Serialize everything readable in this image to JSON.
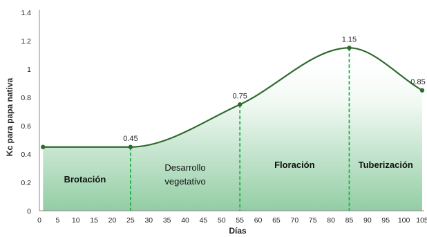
{
  "chart_data": {
    "type": "line",
    "xlabel": "Días",
    "ylabel": "Kc  para papa nativa",
    "xlim": [
      0,
      105
    ],
    "ylim": [
      0,
      1.4
    ],
    "x_ticks": [
      "0",
      "5",
      "10",
      "15",
      "20",
      "25",
      "30",
      "35",
      "40",
      "45",
      "50",
      "55",
      "60",
      "65",
      "70",
      "75",
      "80",
      "85",
      "90",
      "95",
      "100",
      "105"
    ],
    "y_ticks": [
      "0",
      "0.2",
      "0.4",
      "0.6",
      "0.8",
      "1",
      "1.2",
      "1.4"
    ],
    "series": [
      {
        "color": "#2e6b2e",
        "points": [
          {
            "x": 1,
            "y": 0.45,
            "label": ""
          },
          {
            "x": 25,
            "y": 0.45,
            "label": "0.45"
          },
          {
            "x": 55,
            "y": 0.75,
            "label": "0.75"
          },
          {
            "x": 85,
            "y": 1.15,
            "label": "1.15"
          },
          {
            "x": 105,
            "y": 0.85,
            "label": "0.85"
          }
        ]
      }
    ],
    "stage_dividers": [
      25,
      55,
      85
    ],
    "phases": [
      {
        "lines": [
          "Brotación"
        ],
        "bold": true
      },
      {
        "lines": [
          "Desarrollo",
          "vegetativo"
        ],
        "bold": false
      },
      {
        "lines": [
          "Floración"
        ],
        "bold": true
      },
      {
        "lines": [
          "Tuberización"
        ],
        "bold": true
      }
    ],
    "colors": {
      "line": "#2e6b2e",
      "fill": "#3aa55a",
      "divider": "#22b04a",
      "axis": "#888888"
    },
    "grid": false
  }
}
